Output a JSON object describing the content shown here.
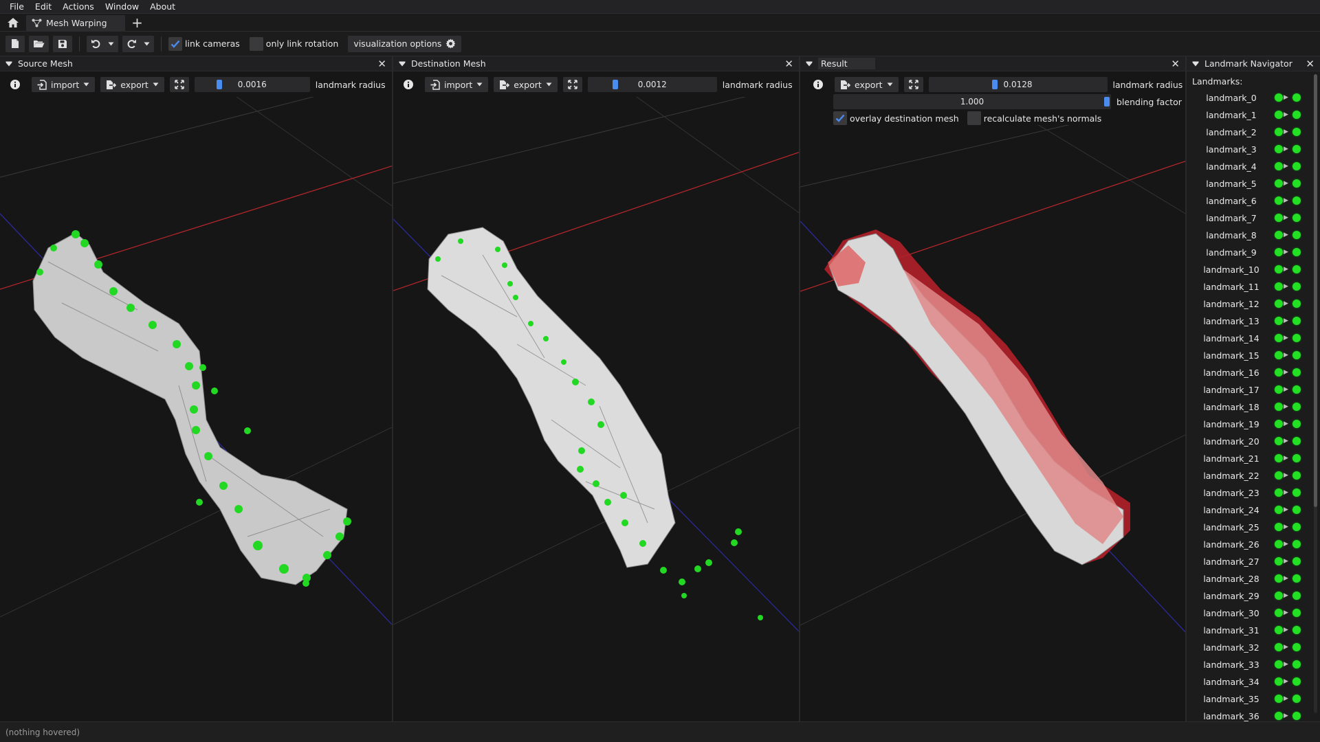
{
  "menubar": {
    "items": [
      "File",
      "Edit",
      "Actions",
      "Window",
      "About"
    ]
  },
  "tabs": {
    "active": "Mesh Warping",
    "new_tab": "+"
  },
  "toolbar": {
    "link_cameras": {
      "label": "link cameras",
      "checked": true
    },
    "only_link_rotation": {
      "label": "only link rotation",
      "checked": false
    },
    "visualization_options": "visualization options"
  },
  "source": {
    "title": "Source Mesh",
    "import_label": "import",
    "export_label": "export",
    "landmark_radius_value": "0.0016",
    "landmark_radius_label": "landmark radius"
  },
  "destination": {
    "title": "Destination Mesh",
    "import_label": "import",
    "export_label": "export",
    "landmark_radius_value": "0.0012",
    "landmark_radius_label": "landmark radius"
  },
  "result": {
    "title": "Result",
    "export_label": "export",
    "landmark_radius_value": "0.0128",
    "landmark_radius_label": "landmark radius",
    "blending_factor_value": "1.000",
    "blending_factor_label": "blending factor",
    "overlay_destination": {
      "label": "overlay destination mesh",
      "checked": true
    },
    "recalculate_normals": {
      "label": "recalculate mesh's normals",
      "checked": false
    }
  },
  "navigator": {
    "title": "Landmark Navigator",
    "heading": "Landmarks:",
    "landmarks": [
      "landmark_0",
      "landmark_1",
      "landmark_2",
      "landmark_3",
      "landmark_4",
      "landmark_5",
      "landmark_6",
      "landmark_7",
      "landmark_8",
      "landmark_9",
      "landmark_10",
      "landmark_11",
      "landmark_12",
      "landmark_13",
      "landmark_14",
      "landmark_15",
      "landmark_16",
      "landmark_17",
      "landmark_18",
      "landmark_19",
      "landmark_20",
      "landmark_21",
      "landmark_22",
      "landmark_23",
      "landmark_24",
      "landmark_25",
      "landmark_26",
      "landmark_27",
      "landmark_28",
      "landmark_29",
      "landmark_30",
      "landmark_31",
      "landmark_32",
      "landmark_33",
      "landmark_34",
      "landmark_35",
      "landmark_36"
    ]
  },
  "status": {
    "text": "(nothing hovered)"
  },
  "colors": {
    "accent": "#4a8cf0",
    "landmark": "#24e024",
    "overlay": "#c8202a"
  },
  "icons": [
    "home-icon",
    "mesh-icon",
    "new-file-icon",
    "open-folder-icon",
    "save-icon",
    "undo-icon",
    "redo-icon",
    "gear-icon",
    "info-icon",
    "import-icon",
    "export-icon",
    "fit-view-icon",
    "close-icon",
    "collapse-icon"
  ]
}
